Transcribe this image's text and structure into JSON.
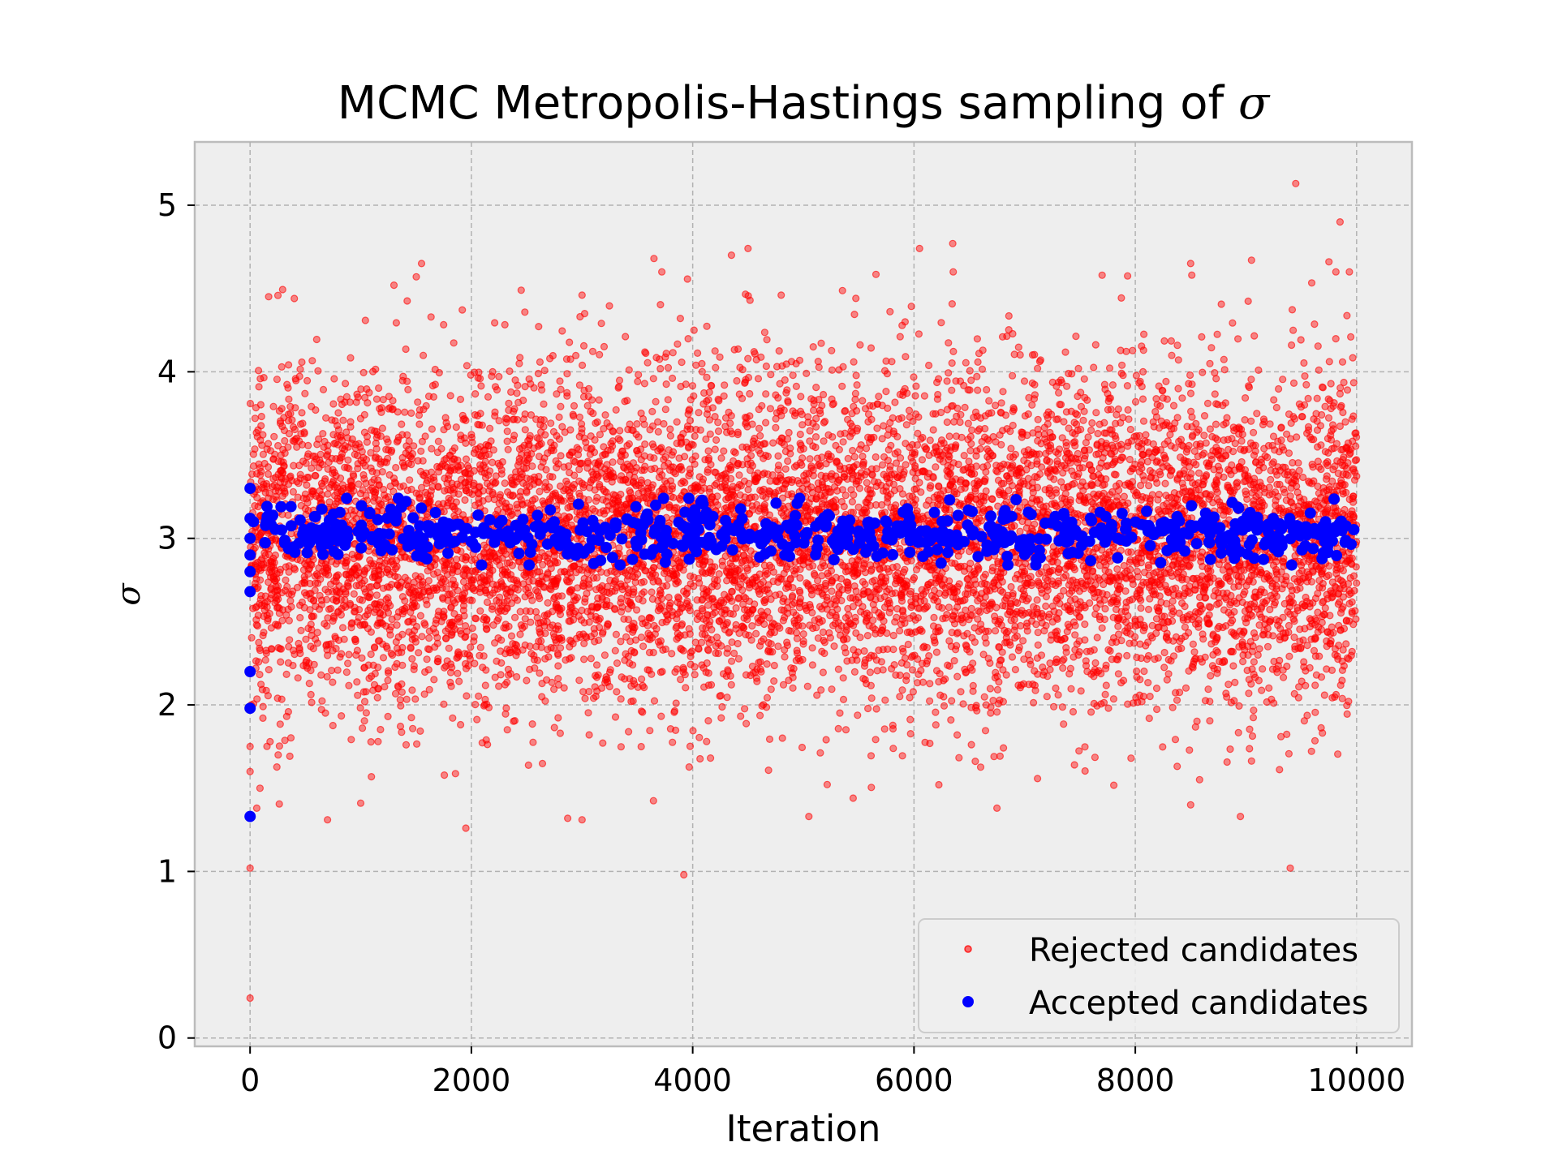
{
  "chart_data": {
    "type": "scatter",
    "title": "MCMC Metropolis-Hastings sampling of ",
    "title_symbol": "σ",
    "xlabel": "Iteration",
    "ylabel": "σ",
    "xlim": [
      -500,
      10500
    ],
    "ylim": [
      -0.05,
      5.38
    ],
    "xticks": [
      0,
      2000,
      4000,
      6000,
      8000,
      10000
    ],
    "xtick_labels": [
      "0",
      "2000",
      "4000",
      "6000",
      "8000",
      "10000"
    ],
    "yticks": [
      0,
      1,
      2,
      3,
      4,
      5
    ],
    "ytick_labels": [
      "0",
      "1",
      "2",
      "3",
      "4",
      "5"
    ],
    "grid": true,
    "legend_position": "lower-right",
    "series": [
      {
        "name": "Rejected candidates",
        "color": "#ff0000",
        "marker": "small-circle-translucent",
        "approx_count": 9000,
        "x_range": [
          0,
          10000
        ],
        "center": 3.0,
        "spread_sd": 0.5,
        "points": [
          [
            0,
            0.24
          ],
          [
            0,
            1.02
          ],
          [
            0,
            1.6
          ],
          [
            0,
            1.75
          ],
          [
            10,
            2.0
          ],
          [
            60,
            1.38
          ],
          [
            700,
            1.31
          ],
          [
            1000,
            1.41
          ],
          [
            1950,
            1.26
          ],
          [
            3000,
            1.31
          ],
          [
            3920,
            0.98
          ],
          [
            9400,
            1.02
          ],
          [
            8950,
            1.33
          ],
          [
            8500,
            1.4
          ],
          [
            9450,
            5.13
          ],
          [
            1550,
            4.65
          ],
          [
            3650,
            4.68
          ],
          [
            4350,
            4.7
          ],
          [
            4500,
            4.74
          ],
          [
            6050,
            4.74
          ],
          [
            6350,
            4.77
          ],
          [
            7700,
            4.58
          ],
          [
            9050,
            4.67
          ],
          [
            9750,
            4.66
          ],
          [
            9850,
            4.9
          ],
          [
            8500,
            4.65
          ],
          [
            5050,
            1.33
          ],
          [
            5450,
            1.44
          ],
          [
            6750,
            1.38
          ],
          [
            7450,
            1.64
          ],
          [
            4800,
            4.46
          ],
          [
            2450,
            4.49
          ],
          [
            3000,
            4.46
          ],
          [
            400,
            4.44
          ],
          [
            1300,
            4.52
          ]
        ]
      },
      {
        "name": "Accepted candidates",
        "color": "#0000ff",
        "marker": "circle",
        "approx_count": 700,
        "x_range": [
          0,
          10000
        ],
        "center": 3.03,
        "spread_sd": 0.08,
        "early_points": [
          [
            0,
            1.33
          ],
          [
            0,
            1.98
          ],
          [
            0,
            2.2
          ],
          [
            0,
            2.68
          ],
          [
            0,
            2.8
          ],
          [
            0,
            2.9
          ],
          [
            0,
            3.0
          ],
          [
            0,
            3.12
          ],
          [
            0,
            3.3
          ],
          [
            30,
            3.1
          ]
        ]
      }
    ]
  }
}
